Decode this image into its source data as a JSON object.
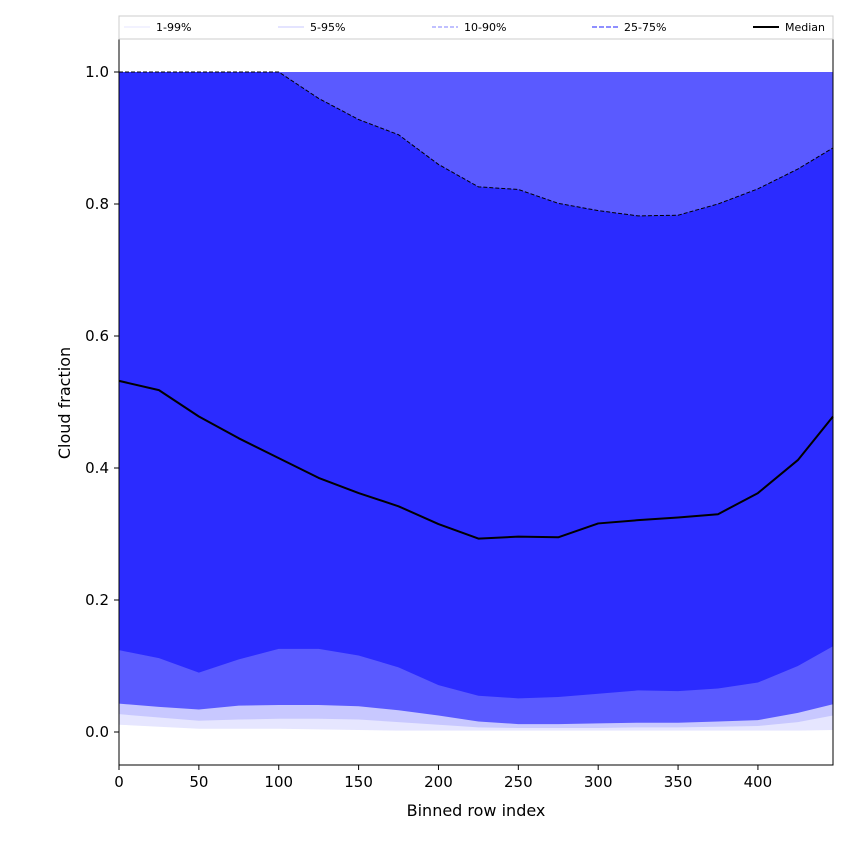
{
  "chart_data": {
    "type": "area",
    "title": "",
    "xlabel": "Binned row index",
    "ylabel": "Cloud fraction",
    "xlim": [
      0,
      447
    ],
    "ylim": [
      -0.05,
      1.05
    ],
    "xticks": [
      0,
      50,
      100,
      150,
      200,
      250,
      300,
      350,
      400
    ],
    "yticks": [
      0.0,
      0.2,
      0.4,
      0.6,
      0.8,
      1.0
    ],
    "legend_position": "top (horizontal strip above plot)",
    "legend": [
      "1-99%",
      "5-95%",
      "10-90%",
      "25-75%",
      "Median"
    ],
    "colors": {
      "band_1_99": "#e6e6ff",
      "band_5_95": "#c8c8ff",
      "band_10_90": "#5a5aff",
      "band_25_75": "#2b2bff",
      "median": "#000000"
    },
    "x": [
      0,
      25,
      50,
      75,
      100,
      125,
      150,
      175,
      200,
      225,
      250,
      275,
      300,
      325,
      350,
      375,
      400,
      425,
      447
    ],
    "bands": [
      {
        "name": "1-99%",
        "lower": [
          0.011,
          0.008,
          0.005,
          0.005,
          0.005,
          0.004,
          0.003,
          0.002,
          0.002,
          0.002,
          0.002,
          0.002,
          0.002,
          0.002,
          0.002,
          0.002,
          0.002,
          0.002,
          0.003
        ],
        "upper": [
          1.0,
          1.0,
          1.0,
          1.0,
          1.0,
          1.0,
          1.0,
          1.0,
          1.0,
          1.0,
          1.0,
          1.0,
          1.0,
          1.0,
          1.0,
          1.0,
          1.0,
          1.0,
          1.0
        ]
      },
      {
        "name": "5-95%",
        "lower": [
          0.027,
          0.022,
          0.017,
          0.019,
          0.02,
          0.02,
          0.019,
          0.015,
          0.011,
          0.007,
          0.006,
          0.006,
          0.006,
          0.007,
          0.007,
          0.008,
          0.009,
          0.015,
          0.025
        ],
        "upper": [
          1.0,
          1.0,
          1.0,
          1.0,
          1.0,
          1.0,
          1.0,
          1.0,
          1.0,
          1.0,
          1.0,
          1.0,
          1.0,
          1.0,
          1.0,
          1.0,
          1.0,
          1.0,
          1.0
        ]
      },
      {
        "name": "10-90%",
        "lower": [
          0.043,
          0.038,
          0.034,
          0.04,
          0.041,
          0.041,
          0.039,
          0.033,
          0.025,
          0.016,
          0.012,
          0.012,
          0.013,
          0.014,
          0.014,
          0.016,
          0.018,
          0.029,
          0.042
        ],
        "upper": [
          1.0,
          1.0,
          1.0,
          1.0,
          1.0,
          1.0,
          1.0,
          1.0,
          1.0,
          1.0,
          1.0,
          1.0,
          1.0,
          1.0,
          1.0,
          1.0,
          1.0,
          1.0,
          1.0
        ]
      },
      {
        "name": "25-75%",
        "lower": [
          0.124,
          0.112,
          0.09,
          0.11,
          0.126,
          0.126,
          0.116,
          0.098,
          0.071,
          0.055,
          0.051,
          0.053,
          0.058,
          0.063,
          0.062,
          0.066,
          0.075,
          0.1,
          0.13
        ],
        "upper": [
          1.0,
          1.0,
          1.0,
          1.0,
          1.0,
          0.96,
          0.928,
          0.905,
          0.86,
          0.826,
          0.822,
          0.801,
          0.79,
          0.782,
          0.783,
          0.8,
          0.823,
          0.853,
          0.885
        ]
      }
    ],
    "series": [
      {
        "name": "Median",
        "values": [
          0.532,
          0.518,
          0.478,
          0.445,
          0.415,
          0.385,
          0.362,
          0.342,
          0.315,
          0.293,
          0.296,
          0.295,
          0.316,
          0.321,
          0.325,
          0.33,
          0.362,
          0.412,
          0.478
        ]
      }
    ]
  }
}
